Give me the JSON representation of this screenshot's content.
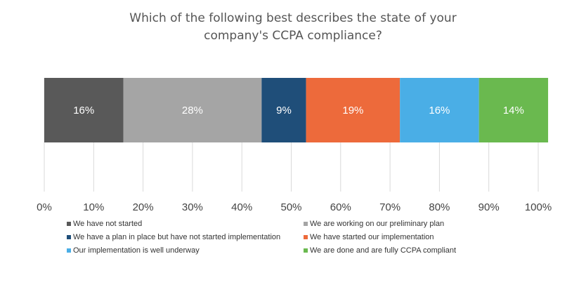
{
  "title_lines": [
    "Which of the following best describes the state of your",
    "company's CCPA compliance?"
  ],
  "chart_data": {
    "type": "bar",
    "orientation": "horizontal",
    "stacked": true,
    "title": "Which of the following best describes the state of your company's CCPA compliance?",
    "xlim": [
      0,
      100
    ],
    "x_ticks": [
      "0%",
      "10%",
      "20%",
      "30%",
      "40%",
      "50%",
      "60%",
      "70%",
      "80%",
      "90%",
      "100%"
    ],
    "grid": "vertical",
    "legend_position": "bottom",
    "series": [
      {
        "name": "We have not started",
        "value": 16,
        "label": "16%",
        "color": "#595959"
      },
      {
        "name": "We are working on our preliminary plan",
        "value": 28,
        "label": "28%",
        "color": "#a5a5a5"
      },
      {
        "name": "We have a plan in place but have not started implementation",
        "value": 9,
        "label": "9%",
        "color": "#1f4e79"
      },
      {
        "name": "We have started our implementation",
        "value": 19,
        "label": "19%",
        "color": "#ed6a3b"
      },
      {
        "name": "Our implementation is well underway",
        "value": 16,
        "label": "16%",
        "color": "#4aaee6"
      },
      {
        "name": "We are done and are fully CCPA compliant",
        "value": 14,
        "label": "14%",
        "color": "#6ab94f"
      }
    ]
  }
}
